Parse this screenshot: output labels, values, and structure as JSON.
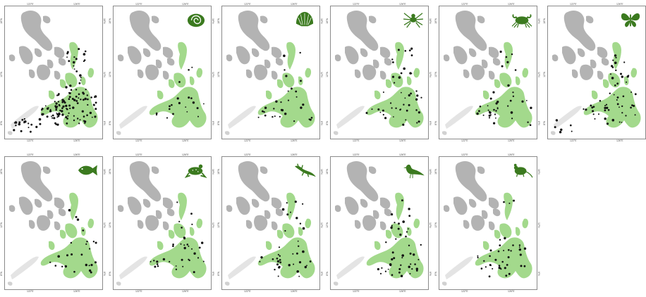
{
  "colors": {
    "land_other": "#b3b3b3",
    "land_focus": "#a3d98c",
    "icon": "#3b7a1f",
    "record": "#111111",
    "frame": "#8a8a8a"
  },
  "axis_ticks": {
    "top": [
      "122°E",
      "126°E"
    ],
    "left": [
      "18°N",
      "12°N",
      "8°N"
    ]
  },
  "panels": [
    {
      "icon": "none",
      "records": "all"
    },
    {
      "icon": "snail-icon"
    },
    {
      "icon": "shell-icon"
    },
    {
      "icon": "spider-icon"
    },
    {
      "icon": "crab-icon"
    },
    {
      "icon": "butterfly-icon"
    },
    {
      "icon": "fish-icon"
    },
    {
      "icon": "frog-icon"
    },
    {
      "icon": "lizard-icon"
    },
    {
      "icon": "bird-icon"
    },
    {
      "icon": "rodent-icon"
    }
  ]
}
